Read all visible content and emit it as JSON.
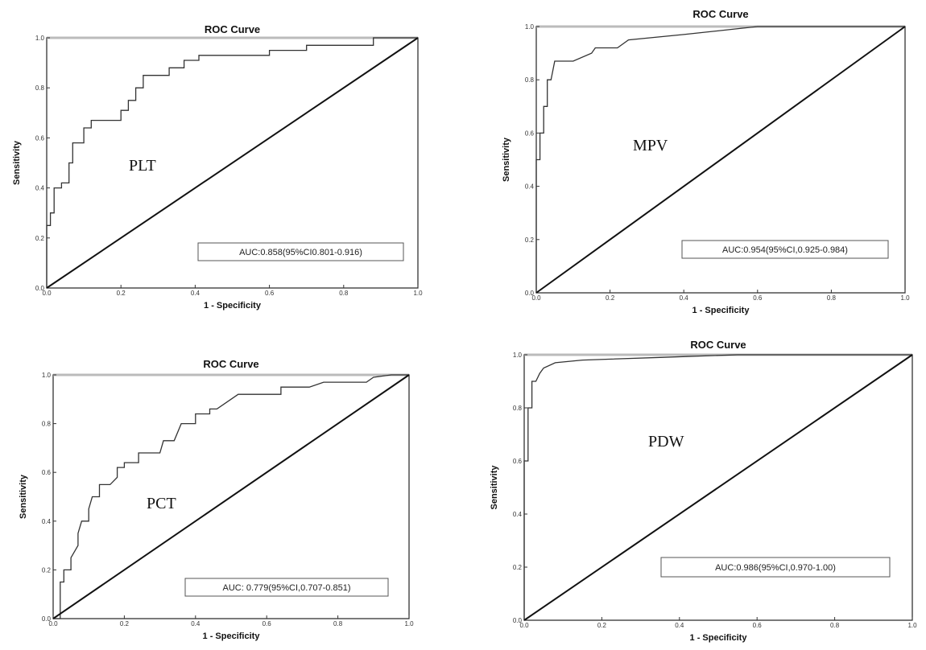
{
  "chart_data": [
    {
      "type": "line",
      "title": "ROC Curve",
      "xlabel": "1 - Specificity",
      "ylabel": "Sensitivity",
      "curve_label": "PLT",
      "annotation": "AUC:0.858(95%CI0.801-0.916)",
      "xlim": [
        0,
        1
      ],
      "ylim": [
        0,
        1
      ],
      "x_ticks": [
        "0.0",
        "0.2",
        "0.4",
        "0.6",
        "0.8",
        "1.0"
      ],
      "y_ticks": [
        "0.0",
        "0.2",
        "0.4",
        "0.6",
        "0.8",
        "1.0"
      ],
      "grid": false,
      "series": [
        {
          "points": [
            [
              0,
              0
            ],
            [
              0,
              0.25
            ],
            [
              0.01,
              0.25
            ],
            [
              0.01,
              0.3
            ],
            [
              0.02,
              0.3
            ],
            [
              0.02,
              0.4
            ],
            [
              0.04,
              0.4
            ],
            [
              0.04,
              0.42
            ],
            [
              0.06,
              0.42
            ],
            [
              0.06,
              0.5
            ],
            [
              0.07,
              0.5
            ],
            [
              0.07,
              0.58
            ],
            [
              0.1,
              0.58
            ],
            [
              0.1,
              0.64
            ],
            [
              0.12,
              0.64
            ],
            [
              0.12,
              0.67
            ],
            [
              0.2,
              0.67
            ],
            [
              0.2,
              0.71
            ],
            [
              0.22,
              0.71
            ],
            [
              0.22,
              0.75
            ],
            [
              0.24,
              0.75
            ],
            [
              0.24,
              0.8
            ],
            [
              0.26,
              0.8
            ],
            [
              0.26,
              0.85
            ],
            [
              0.33,
              0.85
            ],
            [
              0.33,
              0.88
            ],
            [
              0.37,
              0.88
            ],
            [
              0.37,
              0.91
            ],
            [
              0.41,
              0.91
            ],
            [
              0.41,
              0.93
            ],
            [
              0.6,
              0.93
            ],
            [
              0.6,
              0.95
            ],
            [
              0.7,
              0.95
            ],
            [
              0.7,
              0.97
            ],
            [
              0.88,
              0.97
            ],
            [
              0.88,
              1.0
            ],
            [
              1.0,
              1.0
            ]
          ]
        },
        {
          "points": [
            [
              0,
              0
            ],
            [
              1,
              1
            ]
          ]
        }
      ]
    },
    {
      "type": "line",
      "title": "ROC Curve",
      "xlabel": "1 - Specificity",
      "ylabel": "Sensitivity",
      "curve_label": "MPV",
      "annotation": "AUC:0.954(95%CI,0.925-0.984)",
      "xlim": [
        0,
        1
      ],
      "ylim": [
        0,
        1
      ],
      "x_ticks": [
        "0.0",
        "0.2",
        "0.4",
        "0.6",
        "0.8",
        "1.0"
      ],
      "y_ticks": [
        "0.0",
        "0.2",
        "0.4",
        "0.6",
        "0.8",
        "1.0"
      ],
      "grid": false,
      "series": [
        {
          "points": [
            [
              0,
              0
            ],
            [
              0,
              0.5
            ],
            [
              0.01,
              0.5
            ],
            [
              0.01,
              0.6
            ],
            [
              0.02,
              0.6
            ],
            [
              0.02,
              0.7
            ],
            [
              0.03,
              0.7
            ],
            [
              0.03,
              0.8
            ],
            [
              0.04,
              0.8
            ],
            [
              0.05,
              0.87
            ],
            [
              0.1,
              0.87
            ],
            [
              0.15,
              0.9
            ],
            [
              0.16,
              0.92
            ],
            [
              0.22,
              0.92
            ],
            [
              0.25,
              0.95
            ],
            [
              0.4,
              0.97
            ],
            [
              0.6,
              1.0
            ],
            [
              1.0,
              1.0
            ]
          ]
        },
        {
          "points": [
            [
              0,
              0
            ],
            [
              1,
              1
            ]
          ]
        }
      ]
    },
    {
      "type": "line",
      "title": "ROC Curve",
      "xlabel": "1 - Specificity",
      "ylabel": "Sensitivity",
      "curve_label": "PCT",
      "annotation": "AUC: 0.779(95%CI,0.707-0.851)",
      "xlim": [
        0,
        1
      ],
      "ylim": [
        0,
        1
      ],
      "x_ticks": [
        "0.0",
        "0.2",
        "0.4",
        "0.6",
        "0.8",
        "1.0"
      ],
      "y_ticks": [
        "0.0",
        "0.2",
        "0.4",
        "0.6",
        "0.8",
        "1.0"
      ],
      "grid": false,
      "series": [
        {
          "points": [
            [
              0,
              0
            ],
            [
              0.02,
              0
            ],
            [
              0.02,
              0.15
            ],
            [
              0.03,
              0.15
            ],
            [
              0.03,
              0.2
            ],
            [
              0.05,
              0.2
            ],
            [
              0.05,
              0.25
            ],
            [
              0.07,
              0.3
            ],
            [
              0.07,
              0.35
            ],
            [
              0.08,
              0.4
            ],
            [
              0.1,
              0.4
            ],
            [
              0.1,
              0.45
            ],
            [
              0.11,
              0.5
            ],
            [
              0.13,
              0.5
            ],
            [
              0.13,
              0.55
            ],
            [
              0.16,
              0.55
            ],
            [
              0.18,
              0.58
            ],
            [
              0.18,
              0.62
            ],
            [
              0.2,
              0.62
            ],
            [
              0.2,
              0.64
            ],
            [
              0.24,
              0.64
            ],
            [
              0.24,
              0.68
            ],
            [
              0.3,
              0.68
            ],
            [
              0.31,
              0.73
            ],
            [
              0.34,
              0.73
            ],
            [
              0.36,
              0.8
            ],
            [
              0.4,
              0.8
            ],
            [
              0.4,
              0.84
            ],
            [
              0.44,
              0.84
            ],
            [
              0.44,
              0.86
            ],
            [
              0.46,
              0.86
            ],
            [
              0.52,
              0.92
            ],
            [
              0.64,
              0.92
            ],
            [
              0.64,
              0.95
            ],
            [
              0.72,
              0.95
            ],
            [
              0.76,
              0.97
            ],
            [
              0.88,
              0.97
            ],
            [
              0.9,
              0.99
            ],
            [
              0.95,
              1.0
            ],
            [
              1.0,
              1.0
            ]
          ]
        },
        {
          "points": [
            [
              0,
              0
            ],
            [
              1,
              1
            ]
          ]
        }
      ]
    },
    {
      "type": "line",
      "title": "ROC Curve",
      "xlabel": "1 - Specificity",
      "ylabel": "Sensitivity",
      "curve_label": "PDW",
      "annotation": "AUC:0.986(95%CI,0.970-1.00)",
      "xlim": [
        0,
        1
      ],
      "ylim": [
        0,
        1
      ],
      "x_ticks": [
        "0.0",
        "0.2",
        "0.4",
        "0.6",
        "0.8",
        "1.0"
      ],
      "y_ticks": [
        "0.0",
        "0.2",
        "0.4",
        "0.6",
        "0.8",
        "1.0"
      ],
      "grid": false,
      "series": [
        {
          "points": [
            [
              0,
              0
            ],
            [
              0,
              0.6
            ],
            [
              0.01,
              0.6
            ],
            [
              0.01,
              0.8
            ],
            [
              0.02,
              0.8
            ],
            [
              0.02,
              0.9
            ],
            [
              0.03,
              0.9
            ],
            [
              0.04,
              0.93
            ],
            [
              0.05,
              0.95
            ],
            [
              0.08,
              0.97
            ],
            [
              0.15,
              0.98
            ],
            [
              0.35,
              0.99
            ],
            [
              0.55,
              1.0
            ],
            [
              1.0,
              1.0
            ]
          ]
        },
        {
          "points": [
            [
              0,
              0
            ],
            [
              1,
              1
            ]
          ]
        }
      ]
    }
  ]
}
